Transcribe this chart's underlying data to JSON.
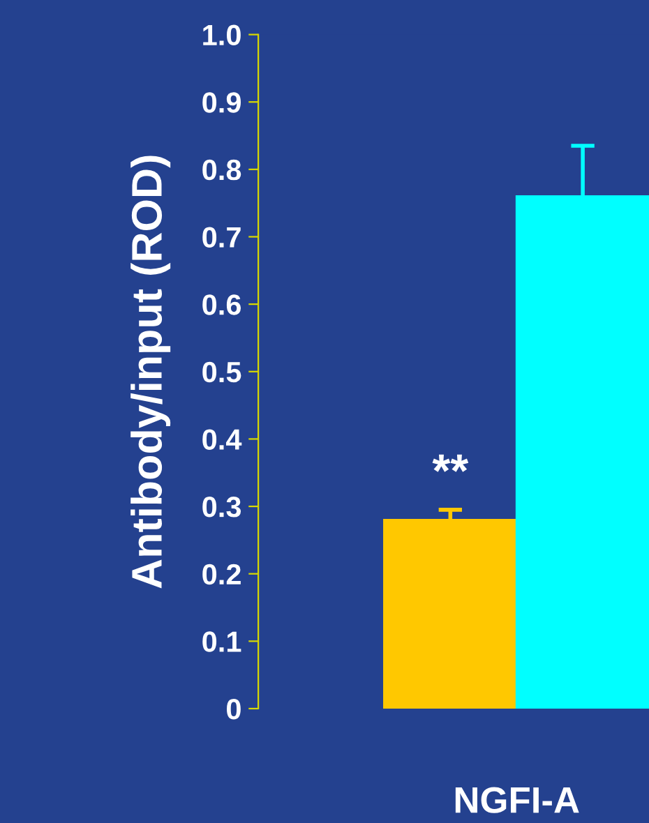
{
  "chart_data": {
    "type": "bar",
    "ylabel": "Antibody/input (ROD)",
    "categories": [
      "NGFI-A"
    ],
    "series": [
      {
        "color": "#ffc800",
        "values": [
          0.28
        ],
        "errors": [
          0.015
        ]
      },
      {
        "color": "#00ffff",
        "values": [
          0.76
        ],
        "errors": [
          0.075
        ]
      }
    ],
    "ylim": [
      0,
      1.0
    ],
    "yticks": [
      0,
      0.1,
      0.2,
      0.3,
      0.4,
      0.5,
      0.6,
      0.7,
      0.8,
      0.9,
      {
        "value": 1,
        "label": "1.0"
      }
    ],
    "annotations": [
      "**"
    ],
    "grid": false,
    "legend": false
  }
}
